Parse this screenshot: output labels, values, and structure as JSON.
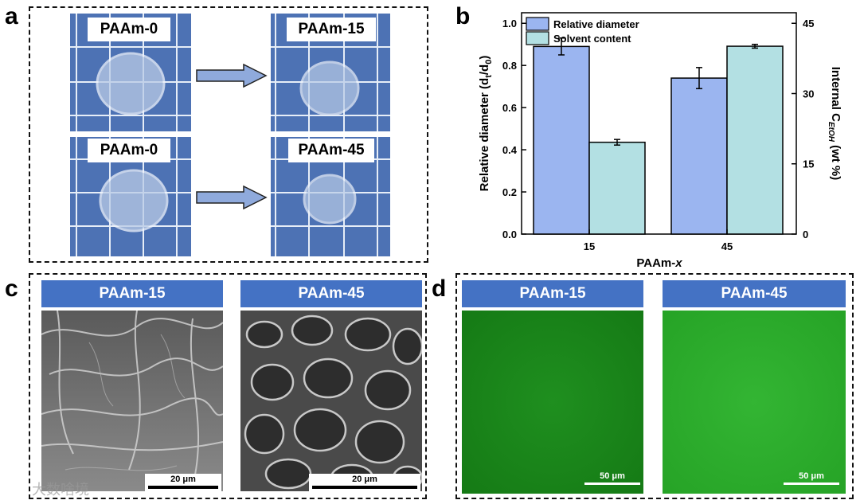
{
  "panel_a": {
    "letter": "a",
    "top_left_label": "PAAm-0",
    "top_right_label": "PAAm-15",
    "bottom_left_label": "PAAm-0",
    "bottom_right_label": "PAAm-45"
  },
  "panel_b": {
    "letter": "b",
    "legend": [
      "Relative diameter",
      "Solvent content"
    ],
    "ylabel_left": "Relative diameter (d",
    "ylabel_left_sub1": "t",
    "ylabel_left_mid": "/d",
    "ylabel_left_sub2": "0",
    "ylabel_left_end": ")",
    "ylabel_right_prefix": "Internal C",
    "ylabel_right_sub": "EtOH",
    "ylabel_right_suffix": " (wt %)",
    "xlabel_prefix": "PAAm-",
    "xlabel_italic": "x",
    "left_ticks": [
      "0.0",
      "0.2",
      "0.4",
      "0.6",
      "0.8",
      "1.0"
    ],
    "right_ticks": [
      "0",
      "15",
      "30",
      "45"
    ],
    "colors": {
      "relative_diameter": "#9bb5f0",
      "solvent_content": "#b3e0e3"
    }
  },
  "chart_data": {
    "type": "bar",
    "categories": [
      "15",
      "45"
    ],
    "series": [
      {
        "name": "Relative diameter",
        "axis": "left",
        "values": [
          0.89,
          0.74
        ],
        "errors": [
          0.04,
          0.05
        ]
      },
      {
        "name": "Solvent content",
        "axis": "right",
        "values": [
          19.6,
          40.1
        ],
        "errors": [
          0.6,
          0.4
        ]
      }
    ],
    "xlabel": "PAAm-x",
    "ylabel": "Relative diameter (dt/d0)",
    "ylabel_right": "Internal CEtOH (wt %)",
    "ylim": [
      0,
      1.05
    ],
    "ylim_right": [
      0,
      47.25
    ],
    "legend_position": "top-left"
  },
  "panel_c": {
    "letter": "c",
    "left_header": "PAAm-15",
    "right_header": "PAAm-45",
    "left_scale": "20 μm",
    "right_scale": "20 μm"
  },
  "panel_d": {
    "letter": "d",
    "left_header": "PAAm-15",
    "right_header": "PAAm-45",
    "left_scale": "50 μm",
    "right_scale": "50 μm"
  },
  "watermark": "大数啥境"
}
